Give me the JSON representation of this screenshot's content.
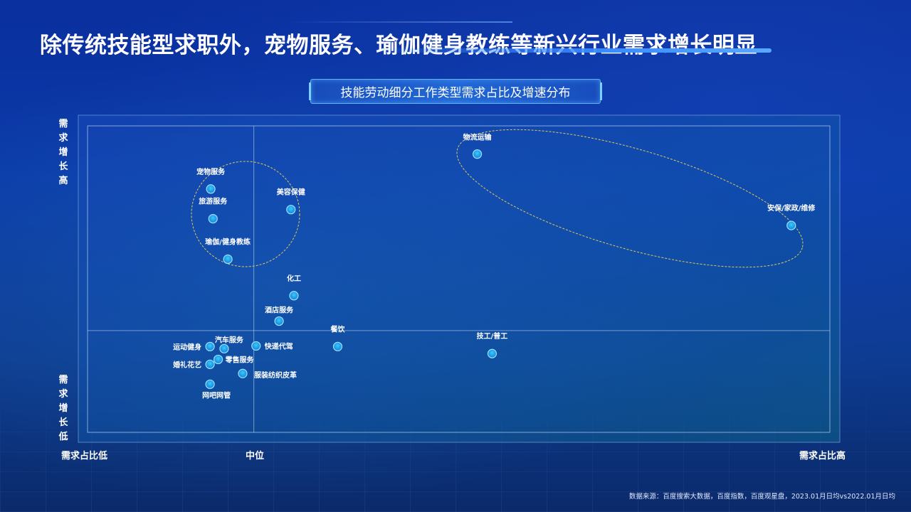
{
  "page": {
    "title": "除传统技能型求职外，宠物服务、瑜伽健身教练等新兴行业需求增长明显",
    "subtitle": "技能劳动细分工作类型需求占比及增速分布",
    "source": "数据来源：百度搜索大数据，百度指数，百度观星盘，2023.01月日均vs2022.01月日均"
  },
  "colors": {
    "point_fill": "#1aa3f0",
    "point_stroke": "#9fe0ff",
    "ellipse_stroke": "#e0c75a",
    "frame": "#8fb8e8"
  },
  "chart_data": {
    "type": "scatter",
    "title": "技能劳动细分工作类型需求占比及增速分布",
    "xlabel_low": "需求占比低",
    "xlabel_mid": "中位",
    "xlabel_high": "需求占比高",
    "ylabel_high": "需求增长高",
    "ylabel_low": "需求增长低",
    "xlim": [
      0,
      100
    ],
    "ylim": [
      0,
      100
    ],
    "x_median": 22.4,
    "y_median": 33.2,
    "points": [
      {
        "label": "物流运输",
        "x": 52.5,
        "y": 90.8
      },
      {
        "label": "安保/家政/维修",
        "x": 94.8,
        "y": 67.5
      },
      {
        "label": "宠物服务",
        "x": 16.6,
        "y": 79.4
      },
      {
        "label": "旅游服务",
        "x": 16.9,
        "y": 69.7
      },
      {
        "label": "美容保健",
        "x": 27.4,
        "y": 72.7
      },
      {
        "label": "瑜伽/健身教练",
        "x": 18.9,
        "y": 56.5
      },
      {
        "label": "化工",
        "x": 27.8,
        "y": 44.6
      },
      {
        "label": "酒店服务",
        "x": 25.8,
        "y": 36.3
      },
      {
        "label": "餐饮",
        "x": 33.7,
        "y": 28.0
      },
      {
        "label": "技工/普工",
        "x": 54.5,
        "y": 25.7
      },
      {
        "label": "运动健身",
        "x": 16.5,
        "y": 28.0
      },
      {
        "label": "汽车服务",
        "x": 18.4,
        "y": 27.3
      },
      {
        "label": "快递代驾",
        "x": 22.7,
        "y": 28.2
      },
      {
        "label": "婚礼花艺",
        "x": 16.5,
        "y": 22.2
      },
      {
        "label": "零售服务",
        "x": 17.6,
        "y": 23.8
      },
      {
        "label": "服装纺织皮革",
        "x": 20.9,
        "y": 19.2
      },
      {
        "label": "网吧网管",
        "x": 16.5,
        "y": 15.7
      }
    ]
  }
}
